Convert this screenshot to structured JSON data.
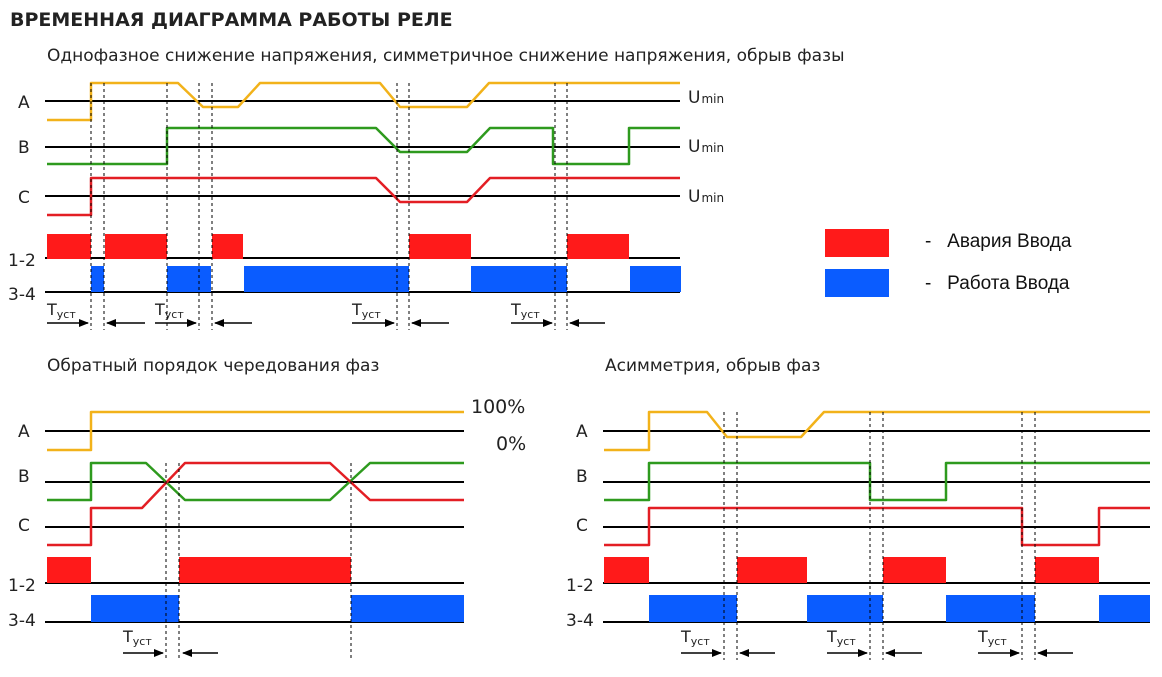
{
  "title": "ВРЕМЕННАЯ ДИАГРАММА РАБОТЫ РЕЛЕ",
  "colors": {
    "phase_A": "#f2b21a",
    "phase_B": "#2e9a1e",
    "phase_C": "#e31e24",
    "alarm": "#ff1a1a",
    "work": "#0a5cff",
    "line": "#000000"
  },
  "legend": {
    "items": [
      {
        "color": "#ff1a1a",
        "label": "-   Авария Ввода"
      },
      {
        "color": "#0a5cff",
        "label": "-   Работа Ввода"
      }
    ]
  },
  "labels": {
    "phase_a": "A",
    "phase_b": "B",
    "phase_c": "C",
    "contacts_12": "1-2",
    "contacts_34": "3-4",
    "umin_main": "U",
    "umin_sub": "min",
    "tust_main": "T",
    "tust_sub": "уст",
    "pct_100": "100%",
    "pct_0": "0%"
  },
  "sections": {
    "top": {
      "title": "Однофазное снижение напряжения, симметричное снижение напряжения, обрыв фазы"
    },
    "left": {
      "title": "Обратный порядок чередования фаз"
    },
    "right": {
      "title": "Асимметрия, обрыв фаз"
    }
  }
}
